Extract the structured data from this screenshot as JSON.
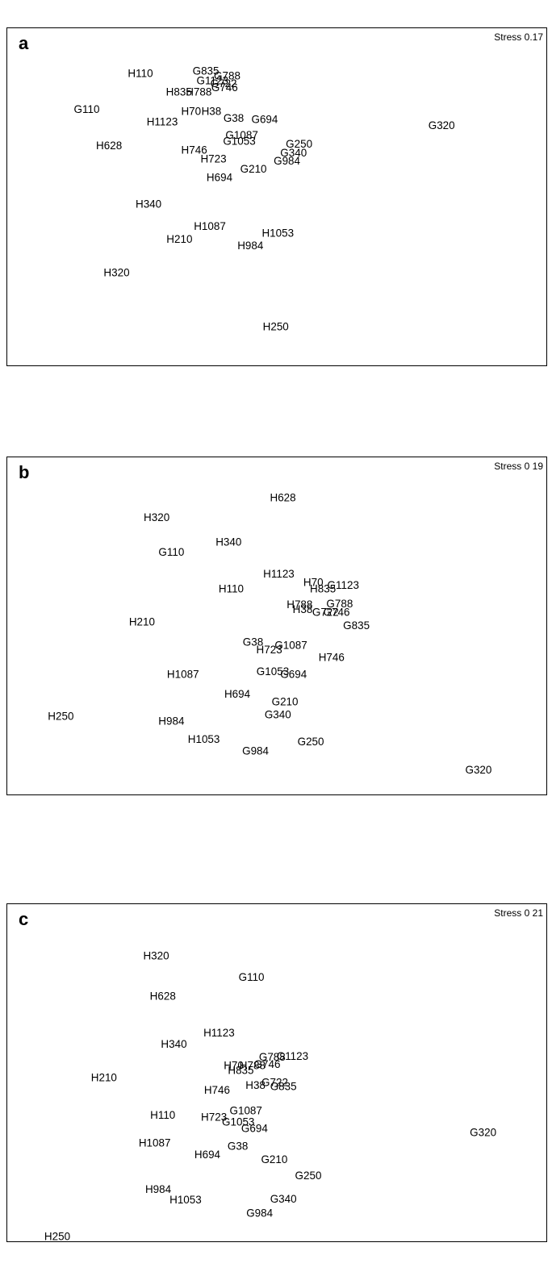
{
  "chart_data": [
    {
      "type": "scatter",
      "panel_label": "a",
      "stress": "Stress 0.17",
      "xlim": [
        0,
        100
      ],
      "ylim": [
        0,
        100
      ],
      "grid": false,
      "points": [
        {
          "label": "G835",
          "x": 36,
          "y": 93.4
        },
        {
          "label": "G788",
          "x": 40.2,
          "y": 91.9
        },
        {
          "label": "H110",
          "x": 23.1,
          "y": 92.6
        },
        {
          "label": "G1123",
          "x": 37.3,
          "y": 90.2
        },
        {
          "label": "G722",
          "x": 39.5,
          "y": 89.3
        },
        {
          "label": "G746",
          "x": 39.7,
          "y": 87.9
        },
        {
          "label": "H835",
          "x": 30.7,
          "y": 86.4
        },
        {
          "label": "H788",
          "x": 34.6,
          "y": 86.4
        },
        {
          "label": "G110",
          "x": 12.5,
          "y": 80.5
        },
        {
          "label": "H70",
          "x": 33.1,
          "y": 79.8
        },
        {
          "label": "H38",
          "x": 37.1,
          "y": 79.8
        },
        {
          "label": "G38",
          "x": 41.5,
          "y": 77.6
        },
        {
          "label": "G694",
          "x": 47.6,
          "y": 77.1
        },
        {
          "label": "H1123",
          "x": 27.4,
          "y": 76.4
        },
        {
          "label": "G320",
          "x": 82.5,
          "y": 75.2
        },
        {
          "label": "G1087",
          "x": 43.1,
          "y": 71.9
        },
        {
          "label": "G1053",
          "x": 42.6,
          "y": 69.8
        },
        {
          "label": "G250",
          "x": 54.4,
          "y": 68.8
        },
        {
          "label": "H628",
          "x": 16.9,
          "y": 68.3
        },
        {
          "label": "H746",
          "x": 33.7,
          "y": 66.9
        },
        {
          "label": "G340",
          "x": 53.3,
          "y": 65.9
        },
        {
          "label": "H723",
          "x": 37.5,
          "y": 63.8
        },
        {
          "label": "G984",
          "x": 52,
          "y": 63.1
        },
        {
          "label": "G210",
          "x": 45.4,
          "y": 60.5
        },
        {
          "label": "H694",
          "x": 38.7,
          "y": 57.6
        },
        {
          "label": "H340",
          "x": 24.7,
          "y": 48.6
        },
        {
          "label": "H1087",
          "x": 36.8,
          "y": 41.2
        },
        {
          "label": "H1053",
          "x": 50.2,
          "y": 38.8
        },
        {
          "label": "H210",
          "x": 30.8,
          "y": 36.9
        },
        {
          "label": "H984",
          "x": 44.8,
          "y": 34.6
        },
        {
          "label": "H320",
          "x": 18.4,
          "y": 25.6
        },
        {
          "label": "H250",
          "x": 49.8,
          "y": 7.4
        }
      ]
    },
    {
      "type": "scatter",
      "panel_label": "b",
      "stress": "Stress 0 19",
      "xlim": [
        0,
        100
      ],
      "ylim": [
        0,
        100
      ],
      "grid": false,
      "points": [
        {
          "label": "H628",
          "x": 51.2,
          "y": 94.3
        },
        {
          "label": "H320",
          "x": 26.3,
          "y": 87.6
        },
        {
          "label": "H340",
          "x": 40.5,
          "y": 79.3
        },
        {
          "label": "G110",
          "x": 29.2,
          "y": 75.9
        },
        {
          "label": "H1123",
          "x": 50.4,
          "y": 68.6
        },
        {
          "label": "H70",
          "x": 57.2,
          "y": 65.7
        },
        {
          "label": "G1123",
          "x": 63.1,
          "y": 64.8
        },
        {
          "label": "H835",
          "x": 59.1,
          "y": 63.6
        },
        {
          "label": "H110",
          "x": 41,
          "y": 63.6
        },
        {
          "label": "H788",
          "x": 54.5,
          "y": 58.3
        },
        {
          "label": "G788",
          "x": 62.4,
          "y": 58.6
        },
        {
          "label": "H38",
          "x": 55.1,
          "y": 56.6
        },
        {
          "label": "G722",
          "x": 59.6,
          "y": 55.7
        },
        {
          "label": "G746",
          "x": 61.8,
          "y": 55.7
        },
        {
          "label": "H210",
          "x": 23.4,
          "y": 52.4
        },
        {
          "label": "G835",
          "x": 65.7,
          "y": 51.2
        },
        {
          "label": "G38",
          "x": 45.3,
          "y": 45.7
        },
        {
          "label": "G1087",
          "x": 52.8,
          "y": 44.5
        },
        {
          "label": "H723",
          "x": 48.5,
          "y": 43.1
        },
        {
          "label": "H746",
          "x": 60.8,
          "y": 40.5
        },
        {
          "label": "G1053",
          "x": 49.2,
          "y": 35.7
        },
        {
          "label": "G694",
          "x": 53.3,
          "y": 34.8
        },
        {
          "label": "H1087",
          "x": 31.5,
          "y": 34.8
        },
        {
          "label": "H694",
          "x": 42.2,
          "y": 28.1
        },
        {
          "label": "G210",
          "x": 51.6,
          "y": 25.5
        },
        {
          "label": "H250",
          "x": 7.4,
          "y": 20.7
        },
        {
          "label": "G340",
          "x": 50.2,
          "y": 21.2
        },
        {
          "label": "H984",
          "x": 29.2,
          "y": 19.0
        },
        {
          "label": "H1053",
          "x": 35.6,
          "y": 12.9
        },
        {
          "label": "G250",
          "x": 56.7,
          "y": 12.1
        },
        {
          "label": "G984",
          "x": 45.8,
          "y": 9.0
        },
        {
          "label": "G320",
          "x": 89.8,
          "y": 2.6
        }
      ]
    },
    {
      "type": "scatter",
      "panel_label": "c",
      "stress": "Stress 0 21",
      "xlim": [
        0,
        100
      ],
      "ylim": [
        0,
        100
      ],
      "grid": false,
      "points": [
        {
          "label": "H320",
          "x": 26.2,
          "y": 90.5
        },
        {
          "label": "G110",
          "x": 45,
          "y": 83.3
        },
        {
          "label": "H628",
          "x": 27.5,
          "y": 76.9
        },
        {
          "label": "H1123",
          "x": 38.6,
          "y": 64.5
        },
        {
          "label": "H340",
          "x": 29.7,
          "y": 60.7
        },
        {
          "label": "G788",
          "x": 49.1,
          "y": 56.4
        },
        {
          "label": "G1123",
          "x": 53.1,
          "y": 56.7
        },
        {
          "label": "H70",
          "x": 41.5,
          "y": 53.6
        },
        {
          "label": "H788",
          "x": 45.2,
          "y": 53.6
        },
        {
          "label": "G746",
          "x": 48.1,
          "y": 54.0
        },
        {
          "label": "H835",
          "x": 42.9,
          "y": 51.9
        },
        {
          "label": "H210",
          "x": 15.9,
          "y": 49.5
        },
        {
          "label": "G722",
          "x": 49.6,
          "y": 47.9
        },
        {
          "label": "H38",
          "x": 45.8,
          "y": 46.9
        },
        {
          "label": "G835",
          "x": 51.3,
          "y": 46.4
        },
        {
          "label": "H746",
          "x": 38.2,
          "y": 45.2
        },
        {
          "label": "G1087",
          "x": 43.9,
          "y": 38.3
        },
        {
          "label": "H110",
          "x": 27.5,
          "y": 36.9
        },
        {
          "label": "H723",
          "x": 37.6,
          "y": 36.2
        },
        {
          "label": "G1053",
          "x": 42.4,
          "y": 34.5
        },
        {
          "label": "G694",
          "x": 45.6,
          "y": 32.4
        },
        {
          "label": "G320",
          "x": 90.7,
          "y": 31.0
        },
        {
          "label": "H1087",
          "x": 25.9,
          "y": 27.4
        },
        {
          "label": "G38",
          "x": 42.3,
          "y": 26.4
        },
        {
          "label": "H694",
          "x": 36.3,
          "y": 23.6
        },
        {
          "label": "G210",
          "x": 49.5,
          "y": 21.9
        },
        {
          "label": "G250",
          "x": 56.2,
          "y": 16.4
        },
        {
          "label": "H984",
          "x": 26.6,
          "y": 11.9
        },
        {
          "label": "H1053",
          "x": 32,
          "y": 8.3
        },
        {
          "label": "G340",
          "x": 51.3,
          "y": 8.6
        },
        {
          "label": "G984",
          "x": 46.6,
          "y": 3.8
        },
        {
          "label": "H250",
          "x": 6.7,
          "y": -4.0
        }
      ]
    }
  ]
}
